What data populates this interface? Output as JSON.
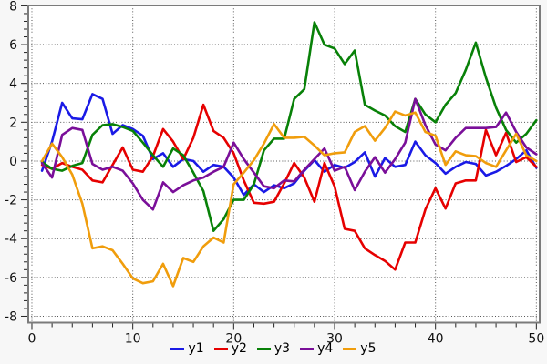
{
  "page": {
    "background": "#f7f7f7"
  },
  "chart_data": {
    "type": "line",
    "title": "",
    "xlabel": "",
    "ylabel": "",
    "grid": "dotted-major",
    "legend_position": "bottom-center",
    "x": [
      1,
      2,
      3,
      4,
      5,
      6,
      7,
      8,
      9,
      10,
      11,
      12,
      13,
      14,
      15,
      16,
      17,
      18,
      19,
      20,
      21,
      22,
      23,
      24,
      25,
      26,
      27,
      28,
      29,
      30,
      31,
      32,
      33,
      34,
      35,
      36,
      37,
      38,
      39,
      40,
      41,
      42,
      43,
      44,
      45,
      46,
      47,
      48,
      49,
      50
    ],
    "series": [
      {
        "name": "y1",
        "color": "#1a1ae6",
        "values": [
          -0.5,
          1.0,
          3.0,
          2.2,
          2.15,
          3.45,
          3.2,
          1.4,
          1.85,
          1.65,
          1.3,
          0.1,
          0.4,
          -0.3,
          0.1,
          0.0,
          -0.55,
          -0.2,
          -0.3,
          -0.85,
          -1.75,
          -1.2,
          -1.6,
          -1.25,
          -1.4,
          -1.15,
          -0.5,
          0.05,
          -0.55,
          -0.2,
          -0.35,
          -0.05,
          0.45,
          -0.8,
          0.15,
          -0.3,
          -0.2,
          1.0,
          0.3,
          -0.1,
          -0.65,
          -0.3,
          -0.05,
          -0.15,
          -0.75,
          -0.55,
          -0.25,
          0.1,
          0.55,
          -0.35
        ]
      },
      {
        "name": "y2",
        "color": "#e60000",
        "values": [
          -0.2,
          -0.4,
          -0.1,
          -0.3,
          -0.45,
          -1.0,
          -1.1,
          -0.2,
          0.7,
          -0.45,
          -0.55,
          0.25,
          1.65,
          1.0,
          0.1,
          1.2,
          2.9,
          1.55,
          1.2,
          0.4,
          -1.0,
          -2.15,
          -2.2,
          -2.1,
          -1.15,
          -0.1,
          -0.85,
          -2.1,
          -0.1,
          -1.3,
          -3.5,
          -3.6,
          -4.5,
          -4.85,
          -5.15,
          -5.6,
          -4.2,
          -4.2,
          -2.5,
          -1.4,
          -2.45,
          -1.15,
          -1.0,
          -1.0,
          1.6,
          0.3,
          1.45,
          -0.05,
          0.2,
          -0.3
        ]
      },
      {
        "name": "y3",
        "color": "#088108",
        "values": [
          -0.05,
          -0.4,
          -0.5,
          -0.25,
          -0.1,
          1.35,
          1.85,
          1.9,
          1.75,
          1.55,
          0.95,
          0.3,
          -0.3,
          0.65,
          0.3,
          -0.6,
          -1.55,
          -3.6,
          -3.0,
          -2.0,
          -2.0,
          -1.2,
          0.55,
          1.15,
          1.15,
          3.2,
          3.7,
          7.15,
          6.0,
          5.8,
          5.0,
          5.7,
          2.9,
          2.6,
          2.35,
          1.8,
          1.5,
          3.2,
          2.4,
          2.0,
          2.9,
          3.5,
          4.7,
          6.1,
          4.3,
          2.75,
          1.6,
          0.95,
          1.4,
          2.1
        ]
      },
      {
        "name": "y4",
        "color": "#7a0f99",
        "values": [
          -0.1,
          -0.85,
          1.35,
          1.7,
          1.6,
          -0.15,
          -0.45,
          -0.3,
          -0.5,
          -1.15,
          -2.0,
          -2.5,
          -1.1,
          -1.6,
          -1.25,
          -1.0,
          -0.85,
          -0.55,
          -0.3,
          0.95,
          0.1,
          -0.6,
          -1.3,
          -1.4,
          -1.0,
          -1.05,
          -0.45,
          0.1,
          0.65,
          -0.5,
          -0.3,
          -1.5,
          -0.55,
          0.2,
          -0.6,
          0.1,
          0.95,
          3.2,
          1.85,
          0.85,
          0.55,
          1.2,
          1.7,
          1.7,
          1.7,
          1.75,
          2.5,
          1.5,
          0.7,
          0.35
        ]
      },
      {
        "name": "y5",
        "color": "#f09d0c",
        "values": [
          0.0,
          0.9,
          0.2,
          -0.7,
          -2.2,
          -4.5,
          -4.4,
          -4.6,
          -5.3,
          -6.05,
          -6.3,
          -6.2,
          -5.3,
          -6.45,
          -5.0,
          -5.2,
          -4.4,
          -3.95,
          -4.2,
          -1.2,
          -0.6,
          0.05,
          0.9,
          1.9,
          1.2,
          1.2,
          1.25,
          0.8,
          0.3,
          0.4,
          0.45,
          1.5,
          1.8,
          1.05,
          1.7,
          2.55,
          2.35,
          2.5,
          1.5,
          1.3,
          -0.2,
          0.5,
          0.3,
          0.25,
          -0.1,
          -0.3,
          0.55,
          1.4,
          0.3,
          0.0
        ]
      }
    ],
    "axes": {
      "x": {
        "min": -0.36,
        "max": 50.33,
        "major_ticks": [
          0,
          10,
          20,
          30,
          40,
          50
        ],
        "minor_step": 2
      },
      "y": {
        "min": -8.33,
        "max": 8.02,
        "major_ticks": [
          -8,
          -6,
          -4,
          -2,
          0,
          2,
          4,
          6,
          8
        ],
        "minor_step": 0.4
      }
    },
    "styles": {
      "plot_bg": "#ffffff",
      "frame": "#7b7b7b",
      "grid": "#555555",
      "tick": "#222222",
      "label": "#111111",
      "line_width": 2.6
    }
  }
}
